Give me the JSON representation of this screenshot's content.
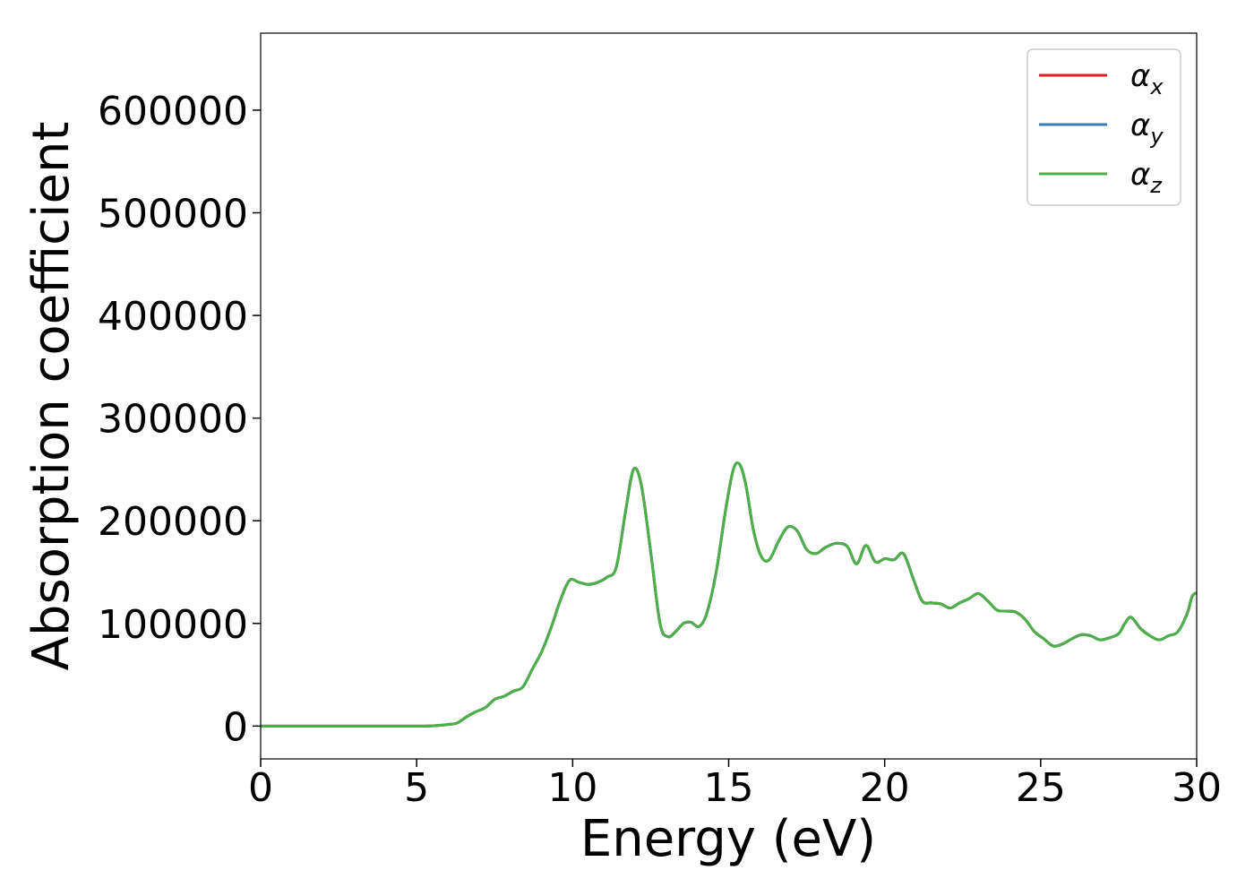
{
  "chart_data": {
    "type": "line",
    "title": "",
    "xlabel": "Energy (eV)",
    "ylabel": "Absorption coefficient",
    "xlim": [
      0,
      30
    ],
    "ylim": [
      -32000,
      675000
    ],
    "xticks": [
      0,
      5,
      10,
      15,
      20,
      25,
      30
    ],
    "yticks": [
      0,
      100000,
      200000,
      300000,
      400000,
      500000,
      600000
    ],
    "xtick_labels": [
      "0",
      "5",
      "10",
      "15",
      "20",
      "25",
      "30"
    ],
    "ytick_labels": [
      "0",
      "100000",
      "200000",
      "300000",
      "400000",
      "500000",
      "600000"
    ],
    "grid": false,
    "legend_position": "top-right",
    "x": [
      0,
      1,
      2,
      3,
      4,
      5,
      5.5,
      6,
      6.3,
      6.6,
      6.9,
      7.2,
      7.5,
      7.8,
      8.1,
      8.4,
      8.7,
      9.0,
      9.3,
      9.6,
      9.9,
      10.2,
      10.5,
      10.8,
      11.1,
      11.4,
      11.7,
      11.95,
      12.2,
      12.5,
      12.8,
      13.05,
      13.3,
      13.55,
      13.8,
      14.05,
      14.3,
      14.6,
      14.9,
      15.15,
      15.35,
      15.55,
      15.8,
      16.05,
      16.3,
      16.6,
      16.9,
      17.2,
      17.5,
      17.8,
      18.1,
      18.45,
      18.8,
      19.1,
      19.4,
      19.7,
      20.0,
      20.3,
      20.6,
      20.9,
      21.2,
      21.5,
      21.8,
      22.1,
      22.4,
      22.7,
      23.0,
      23.3,
      23.6,
      23.9,
      24.2,
      24.5,
      24.8,
      25.1,
      25.4,
      25.7,
      26.0,
      26.3,
      26.6,
      26.9,
      27.2,
      27.5,
      27.7,
      27.9,
      28.2,
      28.5,
      28.8,
      29.1,
      29.4,
      29.7,
      29.85,
      30.0
    ],
    "series": [
      {
        "name": "x",
        "color": "#e41a1c",
        "values": [
          0,
          0,
          0,
          0,
          0,
          0,
          200,
          1500,
          3000,
          9000,
          14000,
          18000,
          26000,
          29000,
          34000,
          38000,
          55000,
          72000,
          95000,
          122000,
          142000,
          140000,
          138000,
          140000,
          145000,
          155000,
          210000,
          250000,
          235000,
          170000,
          100000,
          87000,
          92000,
          100000,
          101000,
          97000,
          110000,
          150000,
          210000,
          250000,
          255000,
          235000,
          190000,
          165000,
          162000,
          180000,
          194000,
          190000,
          172000,
          168000,
          174000,
          178000,
          175000,
          158000,
          176000,
          160000,
          163000,
          162000,
          168000,
          145000,
          122000,
          120000,
          119000,
          115000,
          120000,
          124000,
          129000,
          122000,
          113000,
          112000,
          111000,
          104000,
          92000,
          85000,
          78000,
          80000,
          85000,
          89000,
          88000,
          84000,
          86000,
          90000,
          100000,
          106000,
          95000,
          88000,
          84000,
          88000,
          92000,
          110000,
          126000,
          130000
        ]
      },
      {
        "name": "y",
        "color": "#377eb8",
        "values": [
          0,
          0,
          0,
          0,
          0,
          0,
          200,
          1500,
          3000,
          9000,
          14000,
          18000,
          26000,
          29000,
          34000,
          38000,
          55000,
          72000,
          95000,
          122000,
          142000,
          140000,
          138000,
          140000,
          145000,
          155000,
          210000,
          250000,
          235000,
          170000,
          100000,
          87000,
          92000,
          100000,
          101000,
          97000,
          110000,
          150000,
          210000,
          250000,
          255000,
          235000,
          190000,
          165000,
          162000,
          180000,
          194000,
          190000,
          172000,
          168000,
          174000,
          178000,
          175000,
          158000,
          176000,
          160000,
          163000,
          162000,
          168000,
          145000,
          122000,
          120000,
          119000,
          115000,
          120000,
          124000,
          129000,
          122000,
          113000,
          112000,
          111000,
          104000,
          92000,
          85000,
          78000,
          80000,
          85000,
          89000,
          88000,
          84000,
          86000,
          90000,
          100000,
          106000,
          95000,
          88000,
          84000,
          88000,
          92000,
          110000,
          126000,
          130000
        ]
      },
      {
        "name": "z",
        "color": "#4daf4a",
        "values": [
          0,
          0,
          0,
          0,
          0,
          0,
          200,
          1500,
          3000,
          9000,
          14000,
          18000,
          26000,
          29000,
          34000,
          38000,
          55000,
          72000,
          95000,
          122000,
          142000,
          140000,
          138000,
          140000,
          145000,
          155000,
          210000,
          250000,
          235000,
          170000,
          100000,
          87000,
          92000,
          100000,
          101000,
          97000,
          110000,
          150000,
          210000,
          250000,
          255000,
          235000,
          190000,
          165000,
          162000,
          180000,
          194000,
          190000,
          172000,
          168000,
          174000,
          178000,
          175000,
          158000,
          176000,
          160000,
          163000,
          162000,
          168000,
          145000,
          122000,
          120000,
          119000,
          115000,
          120000,
          124000,
          129000,
          122000,
          113000,
          112000,
          111000,
          104000,
          92000,
          85000,
          78000,
          80000,
          85000,
          89000,
          88000,
          84000,
          86000,
          90000,
          100000,
          106000,
          95000,
          88000,
          84000,
          88000,
          92000,
          110000,
          126000,
          130000
        ]
      }
    ],
    "legend": [
      {
        "symbol": "α",
        "subscript": "x",
        "color": "#e41a1c"
      },
      {
        "symbol": "α",
        "subscript": "y",
        "color": "#377eb8"
      },
      {
        "symbol": "α",
        "subscript": "z",
        "color": "#4daf4a"
      }
    ]
  }
}
